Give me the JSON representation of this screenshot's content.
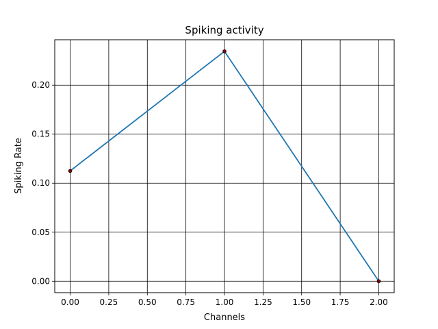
{
  "chart_data": {
    "type": "line",
    "title": "Spiking activity",
    "xlabel": "Channels",
    "ylabel": "Spiking Rate",
    "x": [
      0,
      1,
      2
    ],
    "series": [
      {
        "values": [
          0.1125,
          0.2345,
          0.0
        ]
      }
    ],
    "xlim": [
      -0.1,
      2.1
    ],
    "ylim": [
      -0.0117,
      0.2463
    ],
    "xticks": [
      0.0,
      0.25,
      0.5,
      0.75,
      1.0,
      1.25,
      1.5,
      1.75,
      2.0
    ],
    "xtick_labels": [
      "0.00",
      "0.25",
      "0.50",
      "0.75",
      "1.00",
      "1.25",
      "1.50",
      "1.75",
      "2.00"
    ],
    "yticks": [
      0.0,
      0.05,
      0.1,
      0.15,
      0.2
    ],
    "ytick_labels": [
      "0.00",
      "0.05",
      "0.10",
      "0.15",
      "0.20"
    ],
    "grid": true,
    "colors": {
      "line": "#1f77b4",
      "marker_fill": "#8b0000",
      "marker_edge": "#000000",
      "grid": "#000000"
    }
  }
}
